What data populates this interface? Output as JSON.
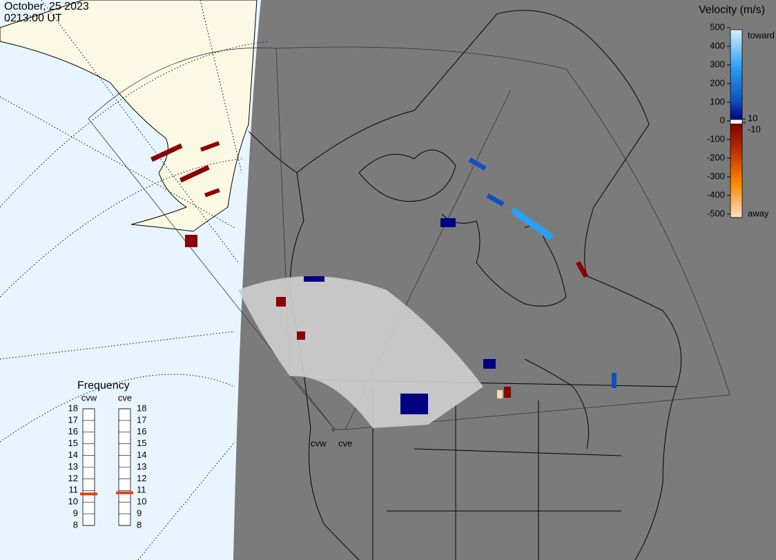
{
  "header": {
    "date": "October, 25 2023",
    "time": "0213:00 UT"
  },
  "colorbar": {
    "title": "Velocity (m/s)",
    "ticks": [
      500,
      400,
      300,
      200,
      100,
      10,
      0,
      -10,
      -100,
      -200,
      -300,
      -400,
      -500
    ],
    "toward": "toward",
    "away": "away"
  },
  "frequency": {
    "title": "Frequency",
    "scale": [
      8,
      9,
      10,
      11,
      12,
      13,
      14,
      15,
      16,
      17,
      18
    ],
    "radars": [
      {
        "name": "cvw",
        "value": 10.7
      },
      {
        "name": "cve",
        "value": 10.8
      }
    ]
  },
  "sites": [
    "cvw",
    "cve"
  ]
}
